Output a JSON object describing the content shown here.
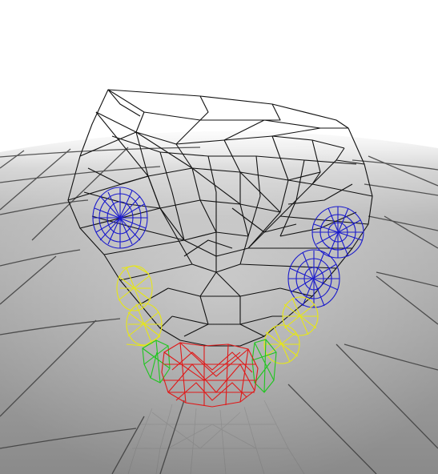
{
  "scene": {
    "subject": "wireframe-jaw-model",
    "background_color": "#ffffff",
    "floor_color": "#9a9a9a",
    "floor_grid_color": "#3c3c3c",
    "colors": {
      "jaw_wireframe": "#111111",
      "molars": "#1a1acc",
      "premolars": "#e6e617",
      "canines": "#1fc61f",
      "incisors": "#e01818"
    }
  }
}
